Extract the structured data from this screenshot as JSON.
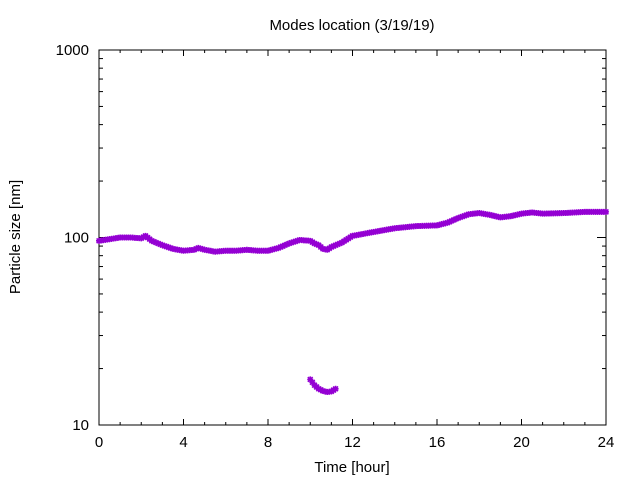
{
  "chart_data": {
    "type": "scatter",
    "title": "Modes location (3/19/19)",
    "xlabel": "Time [hour]",
    "ylabel": "Particle size [nm]",
    "xlim": [
      0,
      24
    ],
    "ylim": [
      10,
      1000
    ],
    "yscale": "log",
    "grid": false,
    "x_ticks": [
      0,
      4,
      8,
      12,
      16,
      20,
      24
    ],
    "x_tick_labels": [
      "0",
      "4",
      "8",
      "12",
      "16",
      "20",
      "24"
    ],
    "y_ticks": [
      10,
      100,
      1000
    ],
    "y_tick_labels": [
      "10",
      "100",
      "1000"
    ],
    "marker_color": "#9400d3",
    "series": [
      {
        "x": [
          0,
          0.5,
          1,
          1.5,
          2,
          2.2,
          2.5,
          3,
          3.5,
          4,
          4.5,
          4.7,
          5,
          5.5,
          6,
          6.5,
          7,
          7.5,
          8,
          8.5,
          9,
          9.5,
          10,
          10.2,
          10.4,
          10.6,
          10.8,
          11,
          11.5,
          12,
          13,
          14,
          15,
          16,
          16.5,
          17,
          17.5,
          18,
          18.5,
          19,
          19.5,
          20,
          20.5,
          21,
          22,
          23,
          24
        ],
        "values": [
          96,
          98,
          100,
          100,
          99,
          102,
          96,
          91,
          87,
          85,
          86,
          88,
          86,
          84,
          85,
          85,
          86,
          85,
          85,
          88,
          93,
          97,
          96,
          93,
          91,
          87,
          86,
          89,
          94,
          102,
          107,
          112,
          115,
          116,
          120,
          127,
          133,
          135,
          132,
          128,
          130,
          134,
          136,
          134,
          135,
          137,
          137
        ]
      },
      {
        "x": [
          10,
          10.2,
          10.4,
          10.6,
          10.8,
          11,
          11.2
        ],
        "values": [
          17.5,
          16.3,
          15.6,
          15.2,
          15.0,
          15.1,
          15.6
        ]
      }
    ]
  }
}
